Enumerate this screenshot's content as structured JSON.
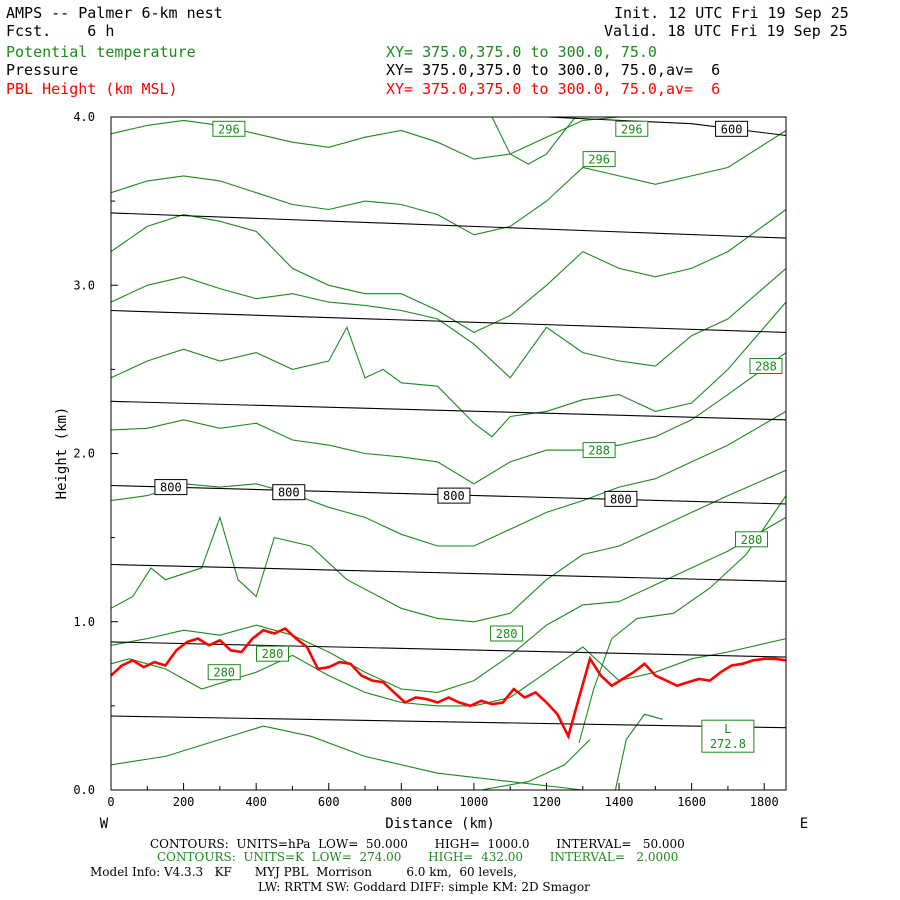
{
  "header": {
    "title": "AMPS -- Palmer 6-km nest",
    "fcst": "Fcst.    6 h",
    "init": "Init. 12 UTC Fri 19 Sep 25",
    "valid": "Valid. 18 UTC Fri 19 Sep 25",
    "field1_name": "Potential temperature",
    "field1_xy": "XY= 375.0,375.0 to 300.0, 75.0",
    "field2_name": "Pressure",
    "field2_xy": "XY= 375.0,375.0 to 300.0, 75.0,av=  6",
    "field3_name": "PBL Height (km MSL)",
    "field3_xy": "XY= 375.0,375.0 to 300.0, 75.0,av=  6"
  },
  "footer": {
    "line1": "CONTOURS:  UNITS=hPa  LOW=  50.000       HIGH=  1000.0       INTERVAL=   50.000",
    "line2": "CONTOURS:  UNITS=K  LOW=  274.00       HIGH=  432.00       INTERVAL=   2.0000",
    "line3": "Model Info: V4.3.3   KF      MYJ PBL  Morrison         6.0 km,  60 levels,",
    "line4": "LW: RRTM SW: Goddard DIFF: simple KM: 2D Smagor"
  },
  "colors": {
    "pressure": "#000000",
    "theta": "#1a8a1a",
    "pbl": "#ff0000"
  },
  "chart_data": {
    "type": "line",
    "title": "AMPS -- Palmer 6-km nest",
    "xlabel": "Distance (km)",
    "ylabel": "Height (km)",
    "xlim": [
      0,
      1860
    ],
    "ylim": [
      0,
      4
    ],
    "xticks": [
      0,
      200,
      400,
      600,
      800,
      1000,
      1200,
      1400,
      1600,
      1800
    ],
    "yticks": [
      0,
      1,
      2,
      3,
      4
    ],
    "ytick_labels": [
      "0.0",
      "1.0",
      "2.0",
      "3.0",
      "4.0"
    ],
    "left_label": "W",
    "right_label": "E",
    "pressure_contours": [
      {
        "x": [
          0,
          1860
        ],
        "y": [
          0.44,
          0.37
        ]
      },
      {
        "x": [
          0,
          1860
        ],
        "y": [
          0.88,
          0.79
        ]
      },
      {
        "x": [
          0,
          1860
        ],
        "y": [
          1.34,
          1.24
        ]
      },
      {
        "x": [
          0,
          1860
        ],
        "y": [
          1.81,
          1.7
        ]
      },
      {
        "x": [
          0,
          1860
        ],
        "y": [
          2.31,
          2.2
        ]
      },
      {
        "x": [
          0,
          1860
        ],
        "y": [
          2.85,
          2.72
        ]
      },
      {
        "x": [
          0,
          1860
        ],
        "y": [
          3.43,
          3.28
        ]
      },
      {
        "x": [
          0,
          400,
          800,
          1200,
          1600,
          1860
        ],
        "y": [
          4.02,
          4.02,
          4.02,
          4.01,
          3.96,
          3.89
        ]
      }
    ],
    "pressure_labels": [
      {
        "text": "800",
        "x": 165,
        "y": 1.8
      },
      {
        "text": "800",
        "x": 490,
        "y": 1.77
      },
      {
        "text": "800",
        "x": 945,
        "y": 1.75
      },
      {
        "text": "800",
        "x": 1405,
        "y": 1.73
      },
      {
        "text": "600",
        "x": 1710,
        "y": 3.93
      }
    ],
    "theta_contours": [
      {
        "x": [
          0,
          150,
          300,
          420,
          550,
          700,
          900,
          1100,
          1300,
          1500,
          1700,
          1860
        ],
        "y": [
          0.15,
          0.2,
          0.3,
          0.38,
          0.32,
          0.2,
          0.1,
          0.05,
          0.0,
          0.0,
          0.0,
          0.0
        ]
      },
      {
        "x": [
          1020,
          1150,
          1250,
          1320
        ],
        "y": [
          0.0,
          0.05,
          0.15,
          0.3
        ]
      },
      {
        "x": [
          1390,
          1420,
          1470,
          1520
        ],
        "y": [
          0.0,
          0.3,
          0.45,
          0.42
        ]
      },
      {
        "x": [
          1290,
          1330,
          1380,
          1450,
          1550,
          1650,
          1750,
          1860
        ],
        "y": [
          0.28,
          0.6,
          0.9,
          1.02,
          1.05,
          1.2,
          1.4,
          1.75
        ]
      },
      {
        "x": [
          0,
          50,
          150,
          250,
          400,
          500,
          600,
          700,
          800,
          900,
          1000,
          1100,
          1200,
          1300,
          1400,
          1500,
          1600,
          1700,
          1860
        ],
        "y": [
          0.75,
          0.78,
          0.72,
          0.6,
          0.7,
          0.8,
          0.68,
          0.58,
          0.52,
          0.5,
          0.5,
          0.55,
          0.7,
          0.85,
          0.65,
          0.7,
          0.78,
          0.82,
          0.9
        ]
      },
      {
        "x": [
          0,
          100,
          200,
          300,
          400,
          500,
          600,
          700,
          800,
          900,
          1000,
          1100,
          1200,
          1300,
          1400,
          1500,
          1600,
          1700,
          1860
        ],
        "y": [
          0.86,
          0.9,
          0.95,
          0.92,
          0.98,
          0.92,
          0.82,
          0.7,
          0.6,
          0.58,
          0.65,
          0.8,
          0.98,
          1.1,
          1.12,
          1.22,
          1.32,
          1.42,
          1.62
        ]
      },
      {
        "x": [
          0,
          60,
          110,
          150,
          250,
          300,
          350,
          400,
          450,
          550,
          650,
          800,
          900,
          1000,
          1100,
          1200,
          1300,
          1400,
          1500,
          1600,
          1700,
          1860
        ],
        "y": [
          1.08,
          1.15,
          1.32,
          1.25,
          1.32,
          1.62,
          1.25,
          1.15,
          1.5,
          1.45,
          1.25,
          1.08,
          1.02,
          1.0,
          1.05,
          1.25,
          1.4,
          1.45,
          1.55,
          1.65,
          1.75,
          1.9
        ]
      },
      {
        "x": [
          0,
          100,
          200,
          300,
          400,
          500,
          600,
          700,
          800,
          900,
          1000,
          1100,
          1200,
          1300,
          1400,
          1500,
          1600,
          1700,
          1860
        ],
        "y": [
          1.72,
          1.75,
          1.82,
          1.8,
          1.82,
          1.76,
          1.68,
          1.62,
          1.52,
          1.45,
          1.45,
          1.55,
          1.65,
          1.72,
          1.8,
          1.85,
          1.95,
          2.05,
          2.25
        ]
      },
      {
        "x": [
          0,
          100,
          200,
          300,
          400,
          500,
          600,
          700,
          800,
          900,
          1000,
          1100,
          1200,
          1300,
          1400,
          1500,
          1600,
          1700,
          1860
        ],
        "y": [
          2.14,
          2.15,
          2.2,
          2.15,
          2.18,
          2.08,
          2.05,
          2.0,
          1.98,
          1.95,
          1.82,
          1.95,
          2.02,
          2.02,
          2.05,
          2.1,
          2.2,
          2.35,
          2.6
        ]
      },
      {
        "x": [
          0,
          100,
          200,
          300,
          400,
          500,
          600,
          650,
          700,
          750,
          800,
          900,
          1000,
          1050,
          1100,
          1200,
          1300,
          1400,
          1500,
          1600,
          1700,
          1860
        ],
        "y": [
          2.45,
          2.55,
          2.62,
          2.55,
          2.6,
          2.5,
          2.55,
          2.75,
          2.45,
          2.5,
          2.42,
          2.4,
          2.18,
          2.1,
          2.22,
          2.25,
          2.32,
          2.35,
          2.25,
          2.3,
          2.5,
          2.9
        ]
      },
      {
        "x": [
          0,
          100,
          200,
          300,
          400,
          500,
          600,
          700,
          800,
          900,
          1000,
          1100,
          1200,
          1300,
          1400,
          1500,
          1600,
          1700,
          1860
        ],
        "y": [
          2.9,
          3.0,
          3.05,
          2.98,
          2.92,
          2.95,
          2.9,
          2.88,
          2.85,
          2.8,
          2.65,
          2.45,
          2.75,
          2.6,
          2.55,
          2.52,
          2.7,
          2.8,
          3.1
        ]
      },
      {
        "x": [
          0,
          100,
          200,
          300,
          400,
          500,
          600,
          700,
          800,
          900,
          1000,
          1100,
          1200,
          1300,
          1400,
          1500,
          1600,
          1700,
          1860
        ],
        "y": [
          3.2,
          3.35,
          3.42,
          3.38,
          3.32,
          3.1,
          3.0,
          2.95,
          2.95,
          2.85,
          2.72,
          2.82,
          3.0,
          3.2,
          3.1,
          3.05,
          3.1,
          3.2,
          3.45
        ]
      },
      {
        "x": [
          0,
          100,
          200,
          300,
          400,
          500,
          600,
          700,
          800,
          900,
          1000,
          1100,
          1200,
          1300,
          1400,
          1500,
          1600,
          1700,
          1860
        ],
        "y": [
          3.55,
          3.62,
          3.65,
          3.62,
          3.55,
          3.48,
          3.45,
          3.5,
          3.48,
          3.42,
          3.3,
          3.35,
          3.5,
          3.7,
          3.65,
          3.6,
          3.65,
          3.7,
          3.92
        ]
      },
      {
        "x": [
          0,
          100,
          200,
          300,
          400,
          500,
          600,
          700,
          800,
          900,
          1000,
          1100,
          1200,
          1300,
          1400,
          1500,
          1600,
          1700,
          1860
        ],
        "y": [
          3.9,
          3.95,
          3.98,
          3.95,
          3.9,
          3.85,
          3.82,
          3.88,
          3.92,
          3.85,
          3.75,
          3.78,
          3.88,
          3.98,
          4.0,
          4.0,
          4.0,
          4.0,
          4.0
        ]
      },
      {
        "x": [
          1050,
          1100,
          1150,
          1200,
          1250,
          1280
        ],
        "y": [
          4.0,
          3.78,
          3.72,
          3.78,
          3.92,
          4.0
        ]
      }
    ],
    "theta_labels": [
      {
        "text": "296",
        "x": 325,
        "y": 3.93
      },
      {
        "text": "296",
        "x": 1435,
        "y": 3.93
      },
      {
        "text": "296",
        "x": 1345,
        "y": 3.75
      },
      {
        "text": "288",
        "x": 1805,
        "y": 2.52
      },
      {
        "text": "288",
        "x": 1345,
        "y": 2.02
      },
      {
        "text": "280",
        "x": 1765,
        "y": 1.49
      },
      {
        "text": "280",
        "x": 1090,
        "y": 0.93
      },
      {
        "text": "280",
        "x": 445,
        "y": 0.81
      },
      {
        "text": "280",
        "x": 312,
        "y": 0.7
      }
    ],
    "low_marker": {
      "label": "L",
      "value": "272.8",
      "x": 1700,
      "y": 0.32
    },
    "pbl_height": {
      "x": [
        0,
        30,
        60,
        90,
        120,
        150,
        180,
        210,
        240,
        270,
        300,
        330,
        360,
        390,
        420,
        450,
        480,
        510,
        540,
        570,
        600,
        630,
        660,
        690,
        720,
        750,
        780,
        810,
        840,
        870,
        900,
        930,
        960,
        990,
        1020,
        1050,
        1080,
        1110,
        1140,
        1170,
        1200,
        1230,
        1260,
        1290,
        1320,
        1350,
        1380,
        1410,
        1440,
        1470,
        1500,
        1530,
        1560,
        1590,
        1620,
        1650,
        1680,
        1710,
        1740,
        1770,
        1800,
        1830,
        1860
      ],
      "y": [
        0.68,
        0.74,
        0.77,
        0.73,
        0.76,
        0.74,
        0.83,
        0.88,
        0.9,
        0.86,
        0.89,
        0.83,
        0.82,
        0.9,
        0.95,
        0.93,
        0.96,
        0.9,
        0.85,
        0.72,
        0.73,
        0.76,
        0.75,
        0.68,
        0.65,
        0.64,
        0.58,
        0.52,
        0.55,
        0.54,
        0.52,
        0.55,
        0.52,
        0.5,
        0.53,
        0.51,
        0.52,
        0.6,
        0.55,
        0.58,
        0.52,
        0.45,
        0.32,
        0.55,
        0.78,
        0.68,
        0.62,
        0.66,
        0.7,
        0.75,
        0.68,
        0.65,
        0.62,
        0.64,
        0.66,
        0.65,
        0.7,
        0.74,
        0.75,
        0.77,
        0.78,
        0.78,
        0.77
      ]
    }
  }
}
